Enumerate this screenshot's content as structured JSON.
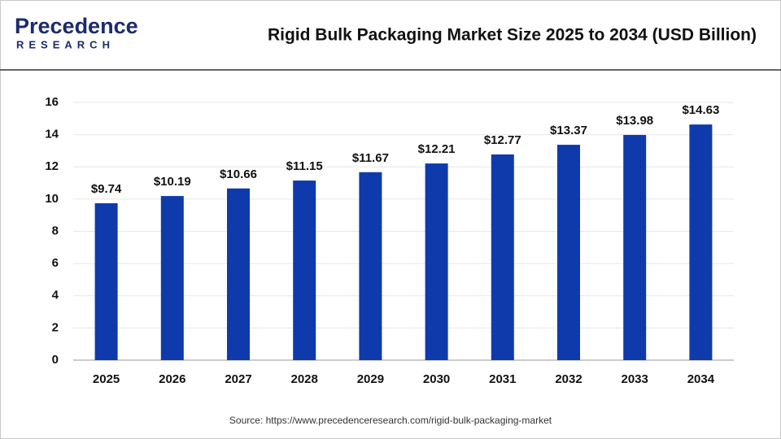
{
  "logo": {
    "name": "Precedence",
    "tagline": "RESEARCH"
  },
  "chart_data": {
    "type": "bar",
    "title": "Rigid Bulk Packaging Market Size 2025 to 2034 (USD Billion)",
    "categories": [
      "2025",
      "2026",
      "2027",
      "2028",
      "2029",
      "2030",
      "2031",
      "2032",
      "2033",
      "2034"
    ],
    "values": [
      9.74,
      10.19,
      10.66,
      11.15,
      11.67,
      12.21,
      12.77,
      13.37,
      13.98,
      14.63
    ],
    "value_labels": [
      "$9.74",
      "$10.19",
      "$10.66",
      "$11.15",
      "$11.67",
      "$12.21",
      "$12.77",
      "$13.37",
      "$13.98",
      "$14.63"
    ],
    "color": "#0e3aab",
    "ylim": [
      0,
      16
    ],
    "yticks": [
      0,
      2,
      4,
      6,
      8,
      10,
      12,
      14,
      16
    ],
    "grid": true,
    "source": "Source: https://www.precedenceresearch.com/rigid-bulk-packaging-market"
  }
}
